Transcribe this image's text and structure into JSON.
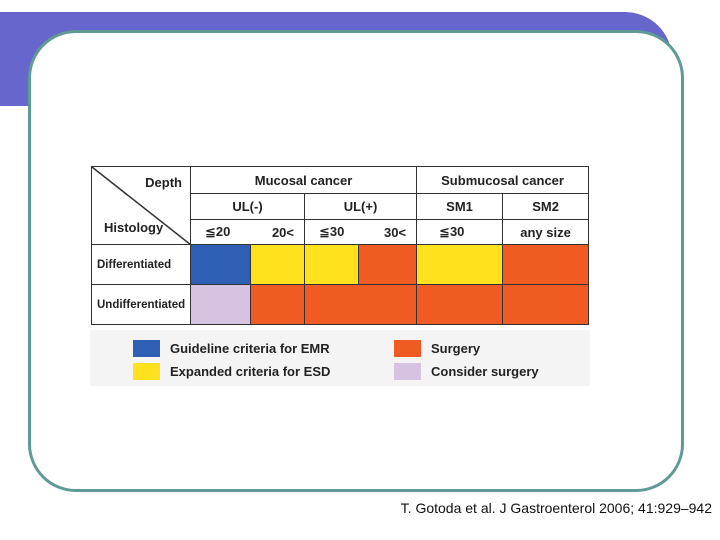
{
  "table": {
    "corner": {
      "depth": "Depth",
      "histology": "Histology"
    },
    "groups": {
      "mucosal": "Mucosal cancer",
      "submucosal": "Submucosal cancer"
    },
    "subgroups": {
      "ul_neg": "UL(-)",
      "ul_pos": "UL(+)",
      "sm1": "SM1",
      "sm2": "SM2"
    },
    "sizes": {
      "ul_neg_a": "≦20",
      "ul_neg_b": "20<",
      "ul_pos_a": "≦30",
      "ul_pos_b": "30<",
      "sm1": "≦30",
      "sm2": "any size"
    },
    "rows": [
      {
        "label": "Differentiated",
        "cells": [
          "Guideline criteria for EMR",
          "Expanded criteria for ESD",
          "Expanded criteria for ESD",
          "Surgery",
          "Expanded criteria for ESD",
          "Surgery"
        ]
      },
      {
        "label": "Undifferentiated",
        "cells": [
          "Consider surgery",
          "Surgery",
          "Surgery",
          "Surgery",
          "Surgery",
          "Surgery"
        ]
      }
    ]
  },
  "legend": {
    "emr": {
      "label": "Guideline criteria for EMR",
      "color": "#2e5fb4"
    },
    "esd": {
      "label": "Expanded criteria for ESD",
      "color": "#ffe11e"
    },
    "surgery": {
      "label": "Surgery",
      "color": "#f05a23"
    },
    "consider": {
      "label": "Consider surgery",
      "color": "#d7c3e1"
    }
  },
  "colors": {
    "header_bar": "#6666cc",
    "frame_border": "#5f9a94"
  },
  "citation": "T. Gotoda et al. J Gastroenterol 2006; 41:929–942"
}
